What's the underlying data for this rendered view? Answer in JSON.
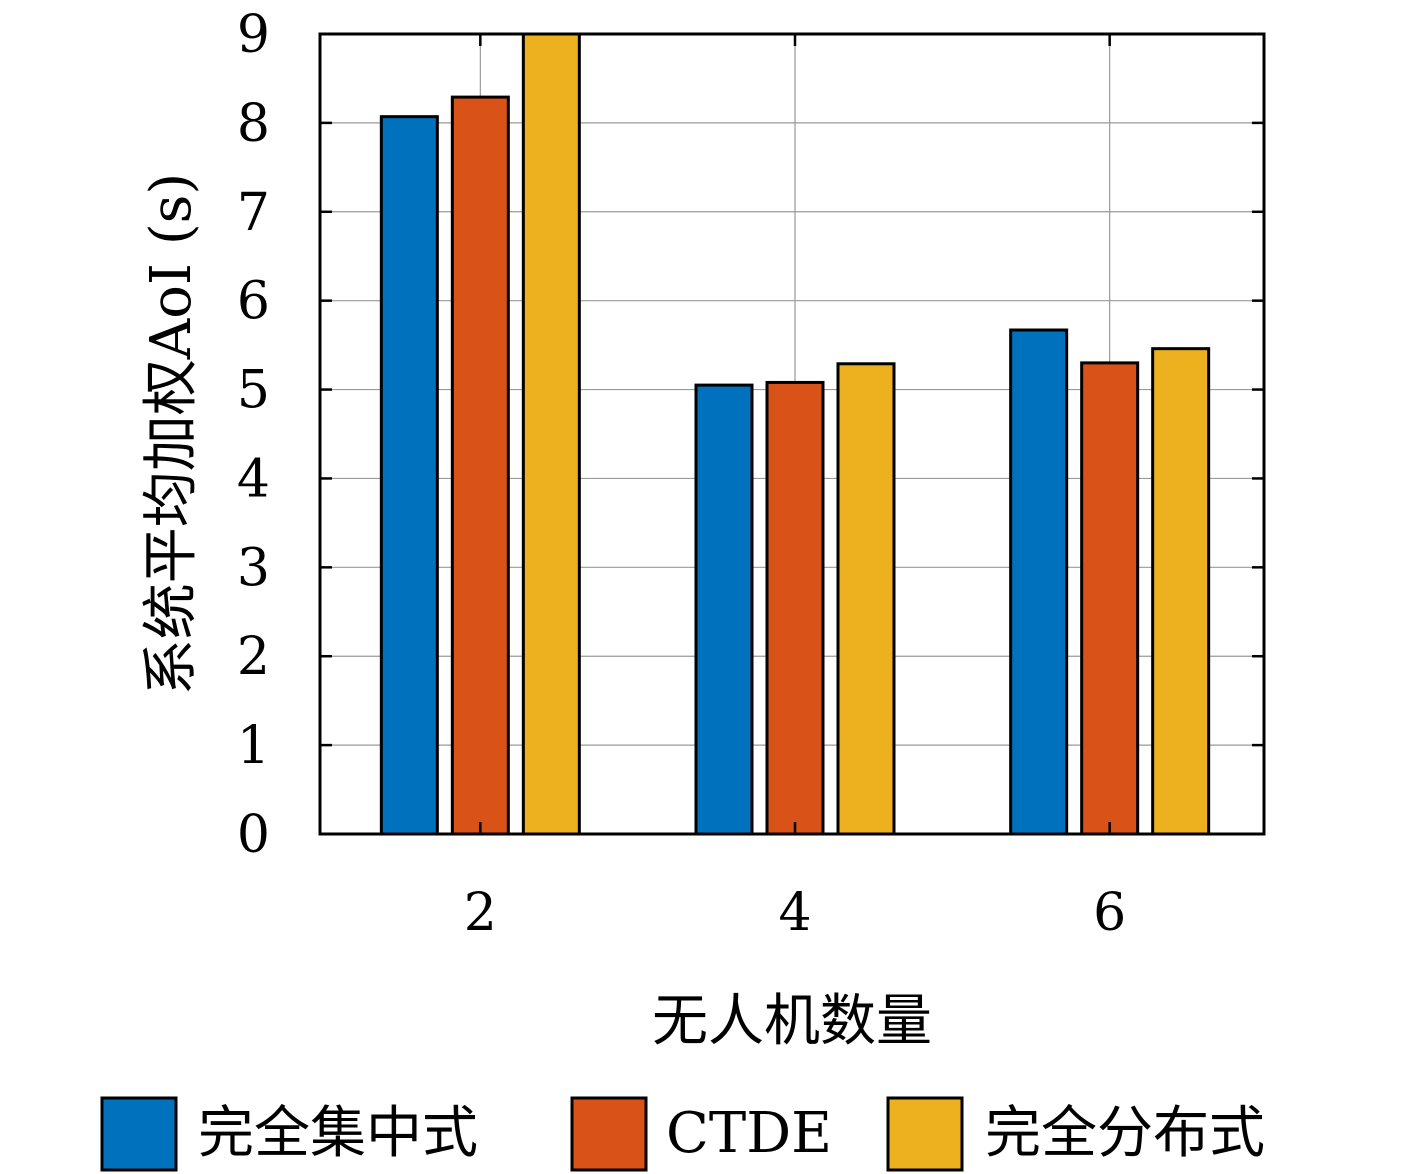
{
  "chart_data": {
    "type": "bar",
    "xlabel": "无人机数量",
    "ylabel": "系统平均加权AoI (s)",
    "categories": [
      "2",
      "4",
      "6"
    ],
    "ylim": [
      0,
      9
    ],
    "yticks": [
      "0",
      "1",
      "2",
      "3",
      "4",
      "5",
      "6",
      "7",
      "8",
      "9"
    ],
    "grid": true,
    "legend_position": "bottom",
    "series": [
      {
        "name": "完全集中式",
        "color": "#0072BD",
        "values": [
          8.07,
          5.05,
          5.67
        ]
      },
      {
        "name": "CTDE",
        "color": "#D95319",
        "values": [
          8.29,
          5.08,
          5.3
        ]
      },
      {
        "name": "完全分布式",
        "color": "#EDB120",
        "values": [
          9.0,
          5.29,
          5.46
        ]
      }
    ]
  }
}
